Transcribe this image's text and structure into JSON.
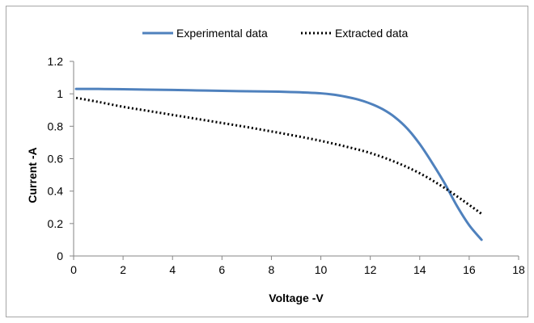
{
  "chart_data": {
    "type": "line",
    "title": "",
    "xlabel": "Voltage -V",
    "ylabel": "Current -A",
    "xlim": [
      0,
      18
    ],
    "ylim": [
      0,
      1.2
    ],
    "x_ticks": [
      0,
      2,
      4,
      6,
      8,
      10,
      12,
      14,
      16,
      18
    ],
    "y_ticks": [
      0,
      0.2,
      0.4,
      0.6,
      0.8,
      1.0,
      1.2
    ],
    "x_tick_labels": [
      "0",
      "2",
      "4",
      "6",
      "8",
      "10",
      "12",
      "14",
      "16",
      "18"
    ],
    "y_tick_labels": [
      "0",
      "0.2",
      "0.4",
      "0.6",
      "0.8",
      "1",
      "1.2"
    ],
    "grid": false,
    "legend_position": "top",
    "series": [
      {
        "name": "Experimental data",
        "color": "#4f81bd",
        "style": "solid",
        "x": [
          0.1,
          1,
          2,
          3,
          4,
          5,
          6,
          7,
          8,
          9,
          10,
          10.5,
          11,
          11.5,
          12,
          12.5,
          13,
          13.5,
          14,
          14.5,
          15,
          15.5,
          16,
          16.5
        ],
        "y": [
          1.03,
          1.03,
          1.028,
          1.026,
          1.024,
          1.021,
          1.018,
          1.016,
          1.014,
          1.01,
          1.003,
          0.995,
          0.982,
          0.965,
          0.94,
          0.905,
          0.855,
          0.785,
          0.69,
          0.575,
          0.45,
          0.31,
          0.19,
          0.1
        ]
      },
      {
        "name": "Extracted data",
        "color": "#000000",
        "style": "dotted",
        "x": [
          0.1,
          1,
          2,
          3,
          4,
          5,
          6,
          7,
          8,
          9,
          10,
          11,
          12,
          13,
          14,
          15,
          16,
          16.5
        ],
        "y": [
          0.975,
          0.95,
          0.92,
          0.895,
          0.87,
          0.845,
          0.82,
          0.795,
          0.768,
          0.74,
          0.71,
          0.675,
          0.635,
          0.58,
          0.51,
          0.42,
          0.315,
          0.26
        ]
      }
    ]
  }
}
